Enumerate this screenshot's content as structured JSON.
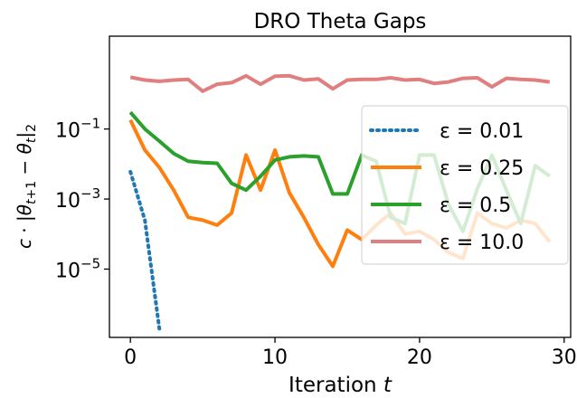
{
  "chart_data": {
    "type": "line",
    "title": "DRO Theta Gaps",
    "xlabel": "Iteration t",
    "ylabel": "c · |θ_{t+1} − θ_t|_2",
    "yscale": "log",
    "xlim": [
      -1.45,
      30.45
    ],
    "ylim_log10": [
      -6.95,
      1.65
    ],
    "xticks": [
      0,
      10,
      20,
      30
    ],
    "xtick_labels": [
      "0",
      "10",
      "20",
      "30"
    ],
    "yticks_log10": [
      -1,
      -3,
      -5
    ],
    "ytick_labels": [
      "10",
      "10",
      "10"
    ],
    "ytick_exponents": [
      "−1",
      "−3",
      "−5"
    ],
    "grid": false,
    "legend_position": "center-right",
    "series": [
      {
        "name": "ε = 0.01",
        "legend_text": "ε = 0.01",
        "color": "#1f77b4",
        "dash": "dotted",
        "x": [
          0,
          1,
          2
        ],
        "y": [
          0.006,
          0.00025,
          2e-07
        ]
      },
      {
        "name": "ε = 0.25",
        "legend_text": "ε = 0.25",
        "color": "#ff7f0e",
        "dash": "solid",
        "x": [
          0,
          1,
          2,
          3,
          4,
          5,
          6,
          7,
          8,
          9,
          10,
          11,
          12,
          13,
          14,
          15,
          16,
          17,
          18,
          19,
          20,
          21,
          22,
          23,
          24,
          25,
          26,
          27,
          28,
          29
        ],
        "y": [
          0.18,
          0.025,
          0.008,
          0.0018,
          0.0003,
          0.00025,
          0.00018,
          0.0004,
          0.018,
          0.0018,
          0.025,
          0.0015,
          0.0003,
          5e-05,
          1.2e-05,
          0.00013,
          7e-05,
          0.00018,
          0.0004,
          0.0001,
          0.00012,
          7e-05,
          3e-05,
          2e-05,
          0.0004,
          0.0002,
          0.00015,
          0.00025,
          0.0002,
          6e-05
        ]
      },
      {
        "name": "ε = 0.5",
        "legend_text": "ε = 0.5",
        "color": "#2ca02c",
        "dash": "solid",
        "x": [
          0,
          1,
          2,
          3,
          4,
          5,
          6,
          7,
          8,
          9,
          10,
          11,
          12,
          13,
          14,
          15,
          16,
          17,
          18,
          19,
          20,
          21,
          22,
          23,
          24,
          25,
          26,
          27,
          28,
          29
        ],
        "y": [
          0.3,
          0.1,
          0.045,
          0.02,
          0.012,
          0.011,
          0.0105,
          0.0028,
          0.0018,
          0.0045,
          0.013,
          0.016,
          0.017,
          0.016,
          0.0014,
          0.0014,
          0.018,
          0.012,
          0.0003,
          0.0002,
          0.018,
          0.018,
          0.0007,
          0.00012,
          0.002,
          0.018,
          0.0018,
          0.0002,
          0.009,
          0.0045
        ]
      },
      {
        "name": "ε = 10.0",
        "legend_text": "ε = 10.0",
        "color": "#e07f80",
        "dash": "solid",
        "x": [
          0,
          1,
          2,
          3,
          4,
          5,
          6,
          7,
          8,
          9,
          10,
          11,
          12,
          13,
          14,
          15,
          16,
          17,
          18,
          19,
          20,
          21,
          22,
          23,
          24,
          25,
          26,
          27,
          28,
          29
        ],
        "y": [
          3.0,
          2.5,
          2.3,
          2.5,
          2.6,
          1.2,
          1.9,
          2.1,
          3.3,
          1.9,
          3.2,
          3.3,
          2.5,
          2.7,
          1.4,
          2.5,
          2.6,
          2.6,
          2.9,
          2.5,
          2.6,
          2.0,
          2.2,
          2.8,
          2.9,
          1.6,
          2.8,
          2.6,
          2.5,
          2.2
        ]
      }
    ]
  }
}
